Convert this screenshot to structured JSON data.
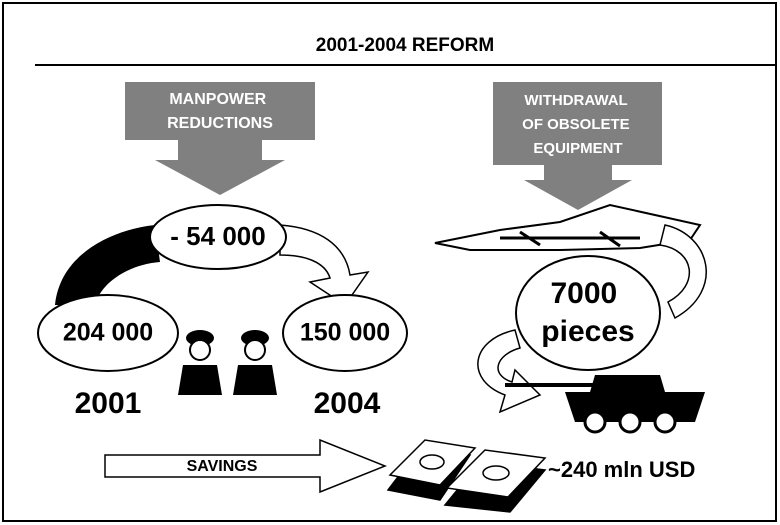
{
  "header": {
    "title": "2001-2004 REFORM"
  },
  "manpower": {
    "label_lines": [
      "MANPOWER",
      "REDUCTIONS"
    ],
    "reduction": "- 54 000",
    "start": {
      "value": "204 000",
      "year": "2001"
    },
    "end": {
      "value": "150 000",
      "year": "2004"
    }
  },
  "equipment": {
    "label_lines": [
      "WITHDRAWAL",
      "OF OBSOLETE",
      "EQUIPMENT"
    ],
    "count_lines": [
      "7000",
      "pieces"
    ]
  },
  "savings": {
    "label": "SAVINGS",
    "amount": "~240 mln USD"
  }
}
